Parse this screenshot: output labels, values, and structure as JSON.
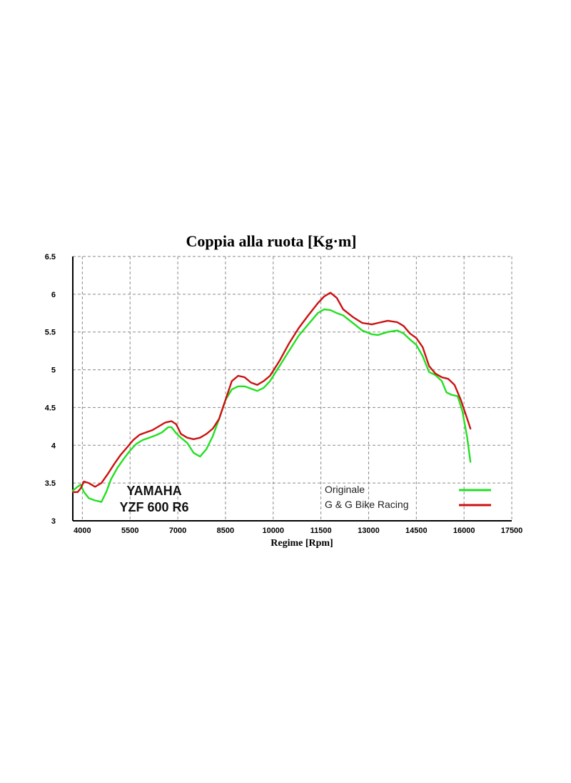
{
  "chart_data": {
    "type": "line",
    "title": "Coppia alla ruota  [Kg·m]",
    "xlabel": "Regime [Rpm]",
    "ylabel": "",
    "xlim": [
      3700,
      17500
    ],
    "ylim": [
      3,
      6.5
    ],
    "x_ticks": [
      "4000",
      "5500",
      "7000",
      "8500",
      "10000",
      "11500",
      "13000",
      "14500",
      "16000",
      "17500"
    ],
    "y_ticks": [
      "3",
      "3.5",
      "4",
      "4.5",
      "5",
      "5.5",
      "6",
      "6.5"
    ],
    "grid": true,
    "legend_position": "bottom-right",
    "annotation": [
      "YAMAHA",
      "YZF 600 R6"
    ],
    "series": [
      {
        "name": "Originale",
        "color": "#22e022",
        "points": [
          [
            3700,
            3.4
          ],
          [
            3850,
            3.45
          ],
          [
            3950,
            3.48
          ],
          [
            4050,
            3.38
          ],
          [
            4200,
            3.3
          ],
          [
            4400,
            3.27
          ],
          [
            4600,
            3.25
          ],
          [
            4750,
            3.38
          ],
          [
            4900,
            3.55
          ],
          [
            5100,
            3.7
          ],
          [
            5300,
            3.82
          ],
          [
            5500,
            3.93
          ],
          [
            5700,
            4.02
          ],
          [
            5900,
            4.07
          ],
          [
            6100,
            4.1
          ],
          [
            6300,
            4.13
          ],
          [
            6500,
            4.17
          ],
          [
            6700,
            4.24
          ],
          [
            6800,
            4.24
          ],
          [
            6950,
            4.16
          ],
          [
            7100,
            4.1
          ],
          [
            7300,
            4.03
          ],
          [
            7500,
            3.9
          ],
          [
            7700,
            3.85
          ],
          [
            7900,
            3.95
          ],
          [
            8100,
            4.12
          ],
          [
            8300,
            4.35
          ],
          [
            8500,
            4.6
          ],
          [
            8700,
            4.74
          ],
          [
            8900,
            4.78
          ],
          [
            9100,
            4.78
          ],
          [
            9300,
            4.75
          ],
          [
            9500,
            4.72
          ],
          [
            9700,
            4.76
          ],
          [
            9900,
            4.85
          ],
          [
            10200,
            5.05
          ],
          [
            10500,
            5.25
          ],
          [
            10800,
            5.45
          ],
          [
            11100,
            5.6
          ],
          [
            11400,
            5.75
          ],
          [
            11600,
            5.8
          ],
          [
            11800,
            5.79
          ],
          [
            12000,
            5.75
          ],
          [
            12200,
            5.72
          ],
          [
            12500,
            5.62
          ],
          [
            12800,
            5.52
          ],
          [
            13100,
            5.47
          ],
          [
            13300,
            5.46
          ],
          [
            13600,
            5.5
          ],
          [
            13900,
            5.52
          ],
          [
            14100,
            5.48
          ],
          [
            14300,
            5.4
          ],
          [
            14500,
            5.33
          ],
          [
            14700,
            5.18
          ],
          [
            14900,
            4.97
          ],
          [
            15100,
            4.93
          ],
          [
            15300,
            4.85
          ],
          [
            15450,
            4.7
          ],
          [
            15600,
            4.67
          ],
          [
            15800,
            4.65
          ],
          [
            15950,
            4.45
          ],
          [
            16100,
            4.1
          ],
          [
            16200,
            3.78
          ]
        ]
      },
      {
        "name": "G & G Bike Racing",
        "color": "#cc1111",
        "points": [
          [
            3700,
            3.38
          ],
          [
            3850,
            3.38
          ],
          [
            3950,
            3.43
          ],
          [
            4050,
            3.52
          ],
          [
            4200,
            3.5
          ],
          [
            4400,
            3.45
          ],
          [
            4600,
            3.5
          ],
          [
            4800,
            3.62
          ],
          [
            5000,
            3.75
          ],
          [
            5200,
            3.87
          ],
          [
            5400,
            3.97
          ],
          [
            5600,
            4.07
          ],
          [
            5800,
            4.14
          ],
          [
            6000,
            4.17
          ],
          [
            6200,
            4.2
          ],
          [
            6400,
            4.25
          ],
          [
            6600,
            4.3
          ],
          [
            6800,
            4.32
          ],
          [
            6950,
            4.28
          ],
          [
            7100,
            4.15
          ],
          [
            7300,
            4.1
          ],
          [
            7500,
            4.08
          ],
          [
            7700,
            4.1
          ],
          [
            7900,
            4.15
          ],
          [
            8100,
            4.22
          ],
          [
            8300,
            4.35
          ],
          [
            8500,
            4.6
          ],
          [
            8700,
            4.85
          ],
          [
            8900,
            4.92
          ],
          [
            9100,
            4.9
          ],
          [
            9300,
            4.83
          ],
          [
            9500,
            4.8
          ],
          [
            9700,
            4.85
          ],
          [
            9900,
            4.92
          ],
          [
            10200,
            5.12
          ],
          [
            10500,
            5.35
          ],
          [
            10800,
            5.55
          ],
          [
            11100,
            5.72
          ],
          [
            11400,
            5.88
          ],
          [
            11600,
            5.97
          ],
          [
            11800,
            6.02
          ],
          [
            12000,
            5.95
          ],
          [
            12200,
            5.8
          ],
          [
            12500,
            5.7
          ],
          [
            12800,
            5.62
          ],
          [
            13100,
            5.6
          ],
          [
            13300,
            5.62
          ],
          [
            13600,
            5.65
          ],
          [
            13900,
            5.63
          ],
          [
            14100,
            5.58
          ],
          [
            14300,
            5.48
          ],
          [
            14500,
            5.42
          ],
          [
            14700,
            5.3
          ],
          [
            14900,
            5.05
          ],
          [
            15100,
            4.95
          ],
          [
            15300,
            4.9
          ],
          [
            15500,
            4.88
          ],
          [
            15700,
            4.8
          ],
          [
            15900,
            4.6
          ],
          [
            16100,
            4.35
          ],
          [
            16200,
            4.22
          ]
        ]
      }
    ]
  }
}
